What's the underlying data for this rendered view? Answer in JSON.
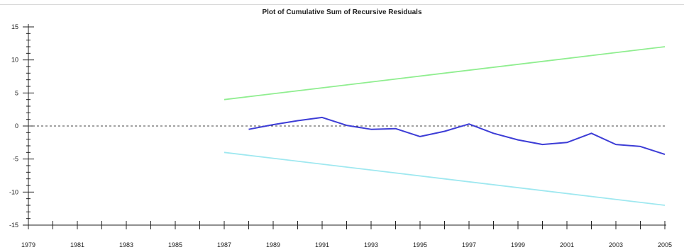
{
  "chart_data": {
    "type": "line",
    "title": "Plot of Cumulative Sum of Recursive Residuals",
    "xlabel": "",
    "ylabel": "",
    "xlim": [
      1979,
      2005
    ],
    "ylim": [
      -15,
      15
    ],
    "x_ticks": [
      1979,
      1980,
      1981,
      1982,
      1983,
      1984,
      1985,
      1986,
      1987,
      1988,
      1989,
      1990,
      1991,
      1992,
      1993,
      1994,
      1995,
      1996,
      1997,
      1998,
      1999,
      2000,
      2001,
      2002,
      2003,
      2004,
      2005
    ],
    "x_tick_labels": [
      "1979",
      "1981",
      "1983",
      "1985",
      "1987",
      "1989",
      "1991",
      "1993",
      "1995",
      "1997",
      "1999",
      "2001",
      "2003",
      "2005"
    ],
    "y_ticks": [
      15,
      10,
      5,
      0,
      -5,
      -10,
      -15
    ],
    "y_tick_labels": [
      "15",
      "10",
      "5",
      "0",
      "-5",
      "-10",
      "-15"
    ],
    "reference_line": {
      "y": 0,
      "style": "dashed",
      "color": "#444444"
    },
    "series": [
      {
        "color": "#90ee90",
        "x": [
          1987,
          2005
        ],
        "y": [
          4,
          12
        ]
      },
      {
        "color": "#3d3dd6",
        "x": [
          1988,
          1989,
          1990,
          1991,
          1992,
          1993,
          1994,
          1995,
          1996,
          1997,
          1998,
          1999,
          2000,
          2001,
          2002,
          2003,
          2004,
          2005
        ],
        "y": [
          -0.5,
          0.2,
          0.8,
          1.3,
          0.1,
          -0.5,
          -0.4,
          -1.6,
          -0.8,
          0.3,
          -1.1,
          -2.1,
          -2.8,
          -2.5,
          -1.1,
          -2.8,
          -3.1,
          -4.3
        ]
      },
      {
        "color": "#9fe8f0",
        "x": [
          1987,
          2005
        ],
        "y": [
          -4,
          -12
        ]
      }
    ],
    "grid": false,
    "legend": "none"
  }
}
